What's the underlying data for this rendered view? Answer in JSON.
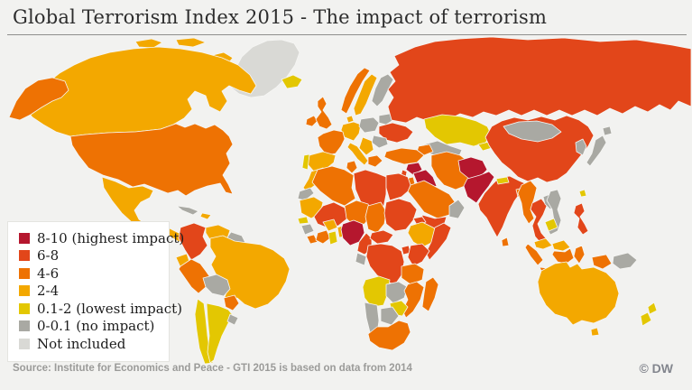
{
  "header": {
    "title": "Global Terrorism Index 2015 - The impact of terrorism"
  },
  "legend": {
    "items": [
      {
        "key": "8-10",
        "label": "8-10 (highest impact)",
        "color": "#b5172e"
      },
      {
        "key": "6-8",
        "label": "6-8",
        "color": "#e2461a"
      },
      {
        "key": "4-6",
        "label": "4-6",
        "color": "#ee7203"
      },
      {
        "key": "2-4",
        "label": "2-4",
        "color": "#f3a800"
      },
      {
        "key": "0.1-2",
        "label": "0.1-2 (lowest impact)",
        "color": "#e3c702"
      },
      {
        "key": "0-0.1",
        "label": "0-0.1 (no impact)",
        "color": "#a9a9a3"
      },
      {
        "key": "ni",
        "label": "Not included",
        "color": "#d9d9d5"
      }
    ]
  },
  "footer": {
    "source": "Source: Institute for Economics and Peace - GTI 2015 is based on data from 2014",
    "credit": "© DW"
  },
  "map": {
    "border_color": "#f6f6f4",
    "countries": [
      {
        "id": "greenland",
        "name": "Greenland",
        "category": "ni"
      },
      {
        "id": "canada",
        "name": "Canada",
        "category": "2-4"
      },
      {
        "id": "arctic-islands",
        "name": "Canadian Arctic Islands",
        "category": "2-4"
      },
      {
        "id": "alaska",
        "name": "Alaska (USA)",
        "category": "4-6"
      },
      {
        "id": "usa",
        "name": "United States",
        "category": "4-6"
      },
      {
        "id": "mexico",
        "name": "Mexico",
        "category": "2-4"
      },
      {
        "id": "central-america",
        "name": "Central America",
        "category": "2-4"
      },
      {
        "id": "panama-costa-rica",
        "name": "Costa Rica / Panama",
        "category": "4-6"
      },
      {
        "id": "cuba",
        "name": "Cuba",
        "category": "0-0.1"
      },
      {
        "id": "hispaniola",
        "name": "Hispaniola",
        "category": "2-4"
      },
      {
        "id": "colombia",
        "name": "Colombia",
        "category": "6-8"
      },
      {
        "id": "venezuela",
        "name": "Venezuela",
        "category": "2-4"
      },
      {
        "id": "guyanas",
        "name": "Guyanas",
        "category": "0-0.1"
      },
      {
        "id": "ecuador",
        "name": "Ecuador",
        "category": "2-4"
      },
      {
        "id": "peru",
        "name": "Peru",
        "category": "4-6"
      },
      {
        "id": "brazil",
        "name": "Brazil",
        "category": "2-4"
      },
      {
        "id": "bolivia",
        "name": "Bolivia",
        "category": "0-0.1"
      },
      {
        "id": "paraguay",
        "name": "Paraguay",
        "category": "4-6"
      },
      {
        "id": "chile",
        "name": "Chile",
        "category": "0.1-2"
      },
      {
        "id": "argentina",
        "name": "Argentina",
        "category": "0.1-2"
      },
      {
        "id": "uruguay",
        "name": "Uruguay",
        "category": "0-0.1"
      },
      {
        "id": "iceland",
        "name": "Iceland",
        "category": "0.1-2"
      },
      {
        "id": "ireland",
        "name": "Ireland",
        "category": "4-6"
      },
      {
        "id": "uk",
        "name": "United Kingdom",
        "category": "4-6"
      },
      {
        "id": "norway",
        "name": "Norway",
        "category": "4-6"
      },
      {
        "id": "sweden",
        "name": "Sweden",
        "category": "2-4"
      },
      {
        "id": "finland",
        "name": "Finland",
        "category": "0-0.1"
      },
      {
        "id": "denmark",
        "name": "Denmark",
        "category": "2-4"
      },
      {
        "id": "germany",
        "name": "Germany",
        "category": "2-4"
      },
      {
        "id": "france",
        "name": "France",
        "category": "4-6"
      },
      {
        "id": "spain",
        "name": "Spain",
        "category": "2-4"
      },
      {
        "id": "portugal",
        "name": "Portugal",
        "category": "0.1-2"
      },
      {
        "id": "italy",
        "name": "Italy",
        "category": "2-4"
      },
      {
        "id": "poland",
        "name": "Poland",
        "category": "0-0.1"
      },
      {
        "id": "belarus",
        "name": "Belarus",
        "category": "0-0.1"
      },
      {
        "id": "ukraine",
        "name": "Ukraine",
        "category": "6-8"
      },
      {
        "id": "romania",
        "name": "Romania",
        "category": "0-0.1"
      },
      {
        "id": "balkans",
        "name": "Balkans",
        "category": "2-4"
      },
      {
        "id": "greece",
        "name": "Greece",
        "category": "4-6"
      },
      {
        "id": "russia",
        "name": "Russia",
        "category": "6-8"
      },
      {
        "id": "kazakhstan",
        "name": "Kazakhstan",
        "category": "0.1-2"
      },
      {
        "id": "central-asia",
        "name": "Turkmenistan / Uzbekistan",
        "category": "0-0.1"
      },
      {
        "id": "kyrgyzstan",
        "name": "Kyrgyzstan",
        "category": "0.1-2"
      },
      {
        "id": "caucasus",
        "name": "Caucasus",
        "category": "4-6"
      },
      {
        "id": "turkey",
        "name": "Turkey",
        "category": "4-6"
      },
      {
        "id": "syria",
        "name": "Syria",
        "category": "8-10"
      },
      {
        "id": "iraq",
        "name": "Iraq",
        "category": "8-10"
      },
      {
        "id": "israel-lebanon",
        "name": "Israel / Lebanon",
        "category": "6-8"
      },
      {
        "id": "jordan",
        "name": "Jordan",
        "category": "4-6"
      },
      {
        "id": "iran",
        "name": "Iran",
        "category": "4-6"
      },
      {
        "id": "saudi-arabia",
        "name": "Saudi Arabia",
        "category": "4-6"
      },
      {
        "id": "yemen",
        "name": "Yemen",
        "category": "6-8"
      },
      {
        "id": "oman",
        "name": "Oman / UAE",
        "category": "0-0.1"
      },
      {
        "id": "afghanistan",
        "name": "Afghanistan",
        "category": "8-10"
      },
      {
        "id": "pakistan",
        "name": "Pakistan",
        "category": "8-10"
      },
      {
        "id": "india",
        "name": "India",
        "category": "6-8"
      },
      {
        "id": "nepal",
        "name": "Nepal",
        "category": "0.1-2"
      },
      {
        "id": "bangladesh",
        "name": "Bangladesh",
        "category": "4-6"
      },
      {
        "id": "sri-lanka",
        "name": "Sri Lanka",
        "category": "4-6"
      },
      {
        "id": "china",
        "name": "China",
        "category": "6-8"
      },
      {
        "id": "mongolia",
        "name": "Mongolia",
        "category": "0-0.1"
      },
      {
        "id": "korea",
        "name": "Korea",
        "category": "0-0.1"
      },
      {
        "id": "japan",
        "name": "Japan",
        "category": "0-0.1"
      },
      {
        "id": "taiwan",
        "name": "Taiwan",
        "category": "0.1-2"
      },
      {
        "id": "myanmar",
        "name": "Myanmar",
        "category": "4-6"
      },
      {
        "id": "thailand",
        "name": "Thailand",
        "category": "6-8"
      },
      {
        "id": "laos",
        "name": "Laos",
        "category": "0-0.1"
      },
      {
        "id": "vietnam",
        "name": "Vietnam",
        "category": "0-0.1"
      },
      {
        "id": "cambodia",
        "name": "Cambodia",
        "category": "0.1-2"
      },
      {
        "id": "malaysia",
        "name": "Malaysia",
        "category": "2-4"
      },
      {
        "id": "indonesia",
        "name": "Indonesia",
        "category": "4-6"
      },
      {
        "id": "philippines",
        "name": "Philippines",
        "category": "6-8"
      },
      {
        "id": "png",
        "name": "Papua New Guinea",
        "category": "0-0.1"
      },
      {
        "id": "morocco",
        "name": "Morocco",
        "category": "2-4"
      },
      {
        "id": "western-sahara",
        "name": "Western Sahara",
        "category": "0-0.1"
      },
      {
        "id": "algeria",
        "name": "Algeria",
        "category": "4-6"
      },
      {
        "id": "tunisia",
        "name": "Tunisia",
        "category": "4-6"
      },
      {
        "id": "libya",
        "name": "Libya",
        "category": "6-8"
      },
      {
        "id": "egypt",
        "name": "Egypt",
        "category": "6-8"
      },
      {
        "id": "mauritania",
        "name": "Mauritania",
        "category": "2-4"
      },
      {
        "id": "mali",
        "name": "Mali",
        "category": "6-8"
      },
      {
        "id": "niger",
        "name": "Niger",
        "category": "4-6"
      },
      {
        "id": "chad",
        "name": "Chad",
        "category": "4-6"
      },
      {
        "id": "sudan",
        "name": "Sudan",
        "category": "6-8"
      },
      {
        "id": "eritrea",
        "name": "Eritrea",
        "category": "6-8"
      },
      {
        "id": "ethiopia",
        "name": "Ethiopia",
        "category": "2-4"
      },
      {
        "id": "somalia",
        "name": "Somalia",
        "category": "6-8"
      },
      {
        "id": "senegal",
        "name": "Senegal",
        "category": "0.1-2"
      },
      {
        "id": "guinea",
        "name": "Guinea",
        "category": "0-0.1"
      },
      {
        "id": "sierra-leone-liberia",
        "name": "Sierra Leone / Liberia",
        "category": "4-6"
      },
      {
        "id": "ivory-coast",
        "name": "Ivory Coast",
        "category": "4-6"
      },
      {
        "id": "ghana",
        "name": "Ghana",
        "category": "0.1-2"
      },
      {
        "id": "burkina",
        "name": "Burkina Faso",
        "category": "2-4"
      },
      {
        "id": "benin-togo",
        "name": "Benin / Togo",
        "category": "2-4"
      },
      {
        "id": "nigeria",
        "name": "Nigeria",
        "category": "8-10"
      },
      {
        "id": "cameroon",
        "name": "Cameroon",
        "category": "6-8"
      },
      {
        "id": "car",
        "name": "Central African Republic",
        "category": "6-8"
      },
      {
        "id": "gabon-congo",
        "name": "Gabon / Congo",
        "category": "0-0.1"
      },
      {
        "id": "drc",
        "name": "DR Congo",
        "category": "6-8"
      },
      {
        "id": "uganda",
        "name": "Uganda",
        "category": "6-8"
      },
      {
        "id": "kenya",
        "name": "Kenya",
        "category": "6-8"
      },
      {
        "id": "tanzania",
        "name": "Tanzania",
        "category": "4-6"
      },
      {
        "id": "angola",
        "name": "Angola",
        "category": "0.1-2"
      },
      {
        "id": "zambia",
        "name": "Zambia",
        "category": "0-0.1"
      },
      {
        "id": "mozambique",
        "name": "Mozambique",
        "category": "4-6"
      },
      {
        "id": "zimbabwe",
        "name": "Zimbabwe",
        "category": "0.1-2"
      },
      {
        "id": "botswana",
        "name": "Botswana",
        "category": "0-0.1"
      },
      {
        "id": "namibia",
        "name": "Namibia",
        "category": "0-0.1"
      },
      {
        "id": "south-africa",
        "name": "South Africa",
        "category": "4-6"
      },
      {
        "id": "madagascar",
        "name": "Madagascar",
        "category": "4-6"
      },
      {
        "id": "australia",
        "name": "Australia",
        "category": "2-4"
      },
      {
        "id": "new-zealand",
        "name": "New Zealand",
        "category": "0.1-2"
      }
    ]
  }
}
